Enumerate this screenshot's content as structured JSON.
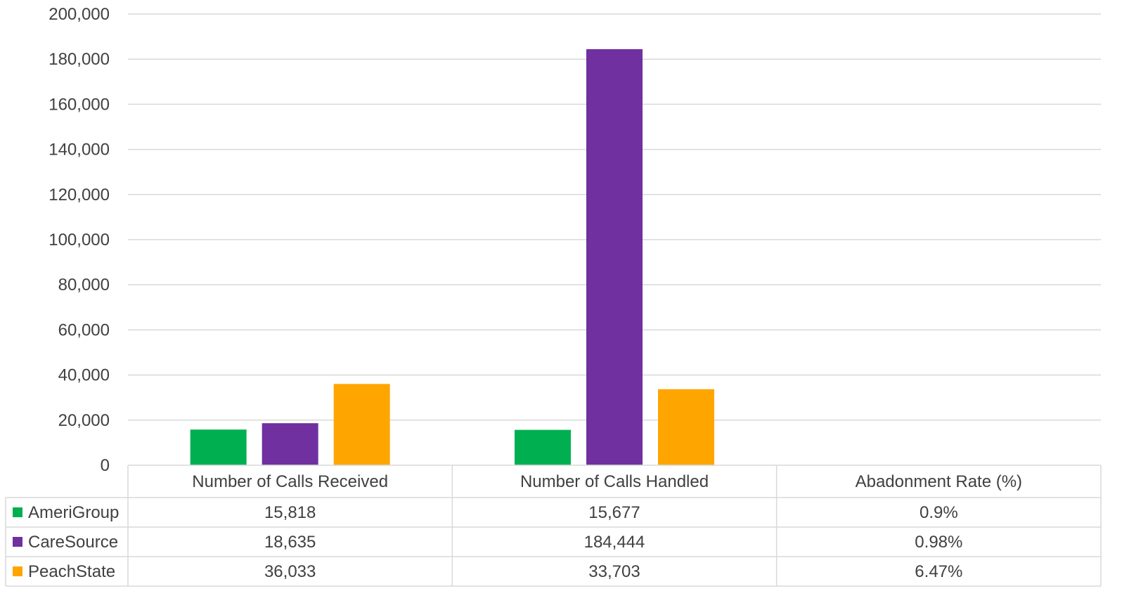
{
  "chart_data": {
    "type": "bar",
    "categories": [
      "Number of Calls Received",
      "Number of Calls Handled",
      "Abadonment Rate (%)"
    ],
    "series": [
      {
        "name": "AmeriGroup",
        "color": "#00b050",
        "values": [
          15818,
          15677,
          0.9
        ],
        "table_values": [
          "15,818",
          "15,677",
          "0.9%"
        ]
      },
      {
        "name": "CareSource",
        "color": "#7030a0",
        "values": [
          18635,
          184444,
          0.98
        ],
        "table_values": [
          "18,635",
          "184,444",
          "0.98%"
        ]
      },
      {
        "name": "PeachState",
        "color": "#ffa500",
        "values": [
          36033,
          33703,
          6.47
        ],
        "table_values": [
          "36,033",
          "33,703",
          "6.47%"
        ]
      }
    ],
    "y_ticks": [
      "0",
      "20,000",
      "40,000",
      "60,000",
      "80,000",
      "100,000",
      "120,000",
      "140,000",
      "160,000",
      "180,000",
      "200,000"
    ],
    "ylim": [
      0,
      200000
    ],
    "y_step": 20000,
    "grid": true,
    "legend_placement": "data-table",
    "gridline_color": "#d9d9d9",
    "text_color": "#404040"
  }
}
